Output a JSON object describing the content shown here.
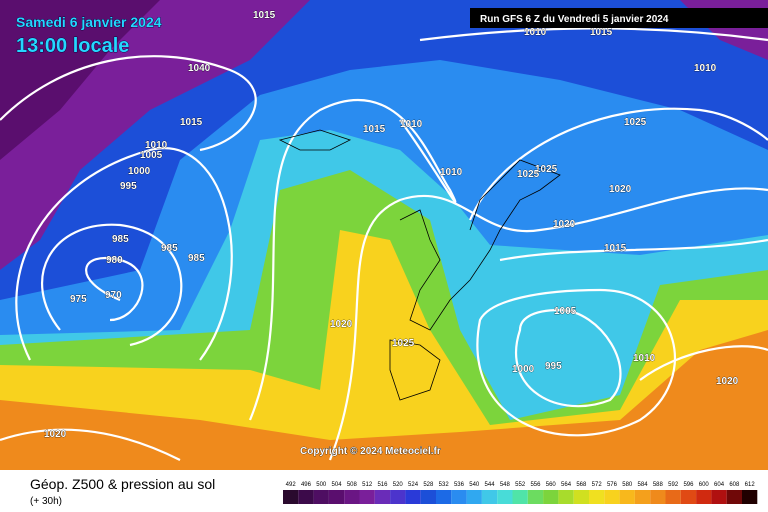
{
  "header": {
    "date": "Samedi 6 janvier 2024",
    "time": "13:00 locale",
    "run": "Run GFS 6 Z du Vendredi 5 janvier 2024"
  },
  "map": {
    "copyright": "Copyright © 2024 Meteociel.fr",
    "isobar_labels": [
      "1015",
      "1010",
      "1015",
      "1010",
      "1040",
      "1015",
      "1015",
      "1010",
      "1025",
      "1010",
      "1005",
      "1000",
      "995",
      "1010",
      "1025",
      "1025",
      "1020",
      "1020",
      "1015",
      "985",
      "985",
      "985",
      "980",
      "975",
      "970",
      "1020",
      "1025",
      "1005",
      "995",
      "1000",
      "1010",
      "1020",
      "1020"
    ]
  },
  "footer": {
    "title": "Géop. Z500 & pression au sol",
    "lead": "(+ 30h)",
    "scale": [
      492,
      496,
      500,
      504,
      508,
      512,
      516,
      520,
      524,
      528,
      532,
      536,
      540,
      544,
      548,
      552,
      556,
      560,
      564,
      568,
      572,
      576,
      580,
      584,
      588,
      592,
      596,
      600,
      604,
      608,
      612
    ]
  }
}
